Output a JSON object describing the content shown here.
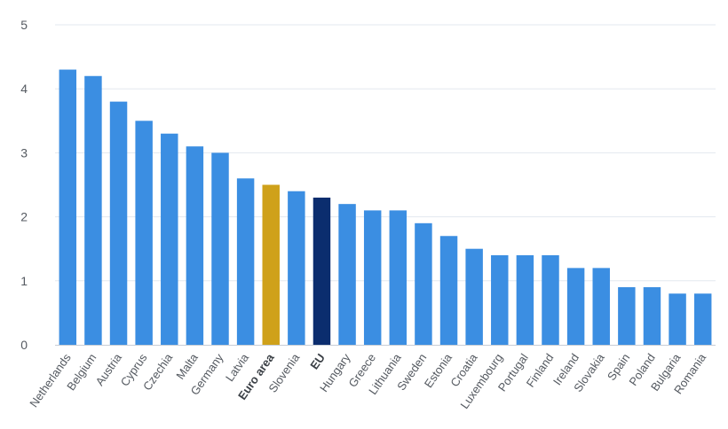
{
  "chart_data": {
    "type": "bar",
    "title": "",
    "xlabel": "",
    "ylabel": "",
    "ylim": [
      0,
      5
    ],
    "yticks": [
      0,
      1,
      2,
      3,
      4,
      5
    ],
    "grid": true,
    "legend": "none",
    "categories": [
      "Netherlands",
      "Belgium",
      "Austria",
      "Cyprus",
      "Czechia",
      "Malta",
      "Germany",
      "Latvia",
      "Euro area",
      "Slovenia",
      "EU",
      "Hungary",
      "Greece",
      "Lithuania",
      "Sweden",
      "Estonia",
      "Croatia",
      "Luxembourg",
      "Portugal",
      "Finland",
      "Ireland",
      "Slovakia",
      "Spain",
      "Poland",
      "Bulgaria",
      "Romania"
    ],
    "values": [
      4.3,
      4.2,
      3.8,
      3.5,
      3.3,
      3.1,
      3.0,
      2.6,
      2.5,
      2.4,
      2.3,
      2.2,
      2.1,
      2.1,
      1.9,
      1.7,
      1.5,
      1.4,
      1.4,
      1.4,
      1.2,
      1.2,
      0.9,
      0.9,
      0.8,
      0.8
    ],
    "highlighted": [
      "Euro area",
      "EU"
    ],
    "colors": {
      "default": "#3b8ee2",
      "Euro area": "#cfa11a",
      "EU": "#0b2d6e",
      "grid": "#e3e8ef",
      "axis_text": "#555a61",
      "baseline": "#c7cdd6"
    }
  }
}
